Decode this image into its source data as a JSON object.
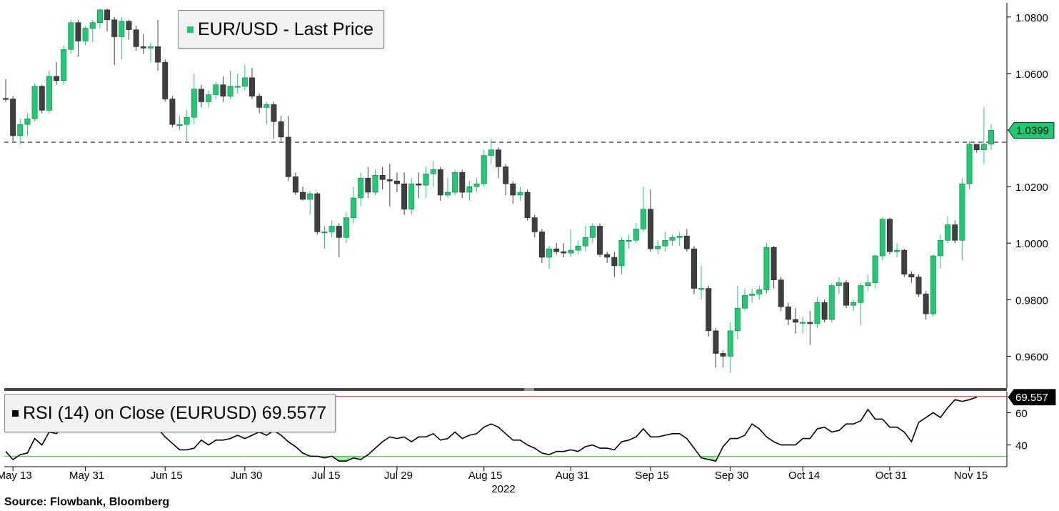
{
  "source": "Source:  Flowbank, Bloomberg",
  "colors": {
    "up": "#1ecb73",
    "down": "#3f3f3f",
    "rsi_line": "#000000",
    "upper_band": "#d42020",
    "lower_band": "#3cc43c",
    "lower_fill": "#a8e6a8",
    "upper_fill": "#d6d6d6"
  },
  "legends": {
    "price": "EUR/USD - Last Price",
    "rsi": "RSI (14)  on Close (EURUSD) 69.5577"
  },
  "last_price": {
    "value": 1.0399,
    "label": "1.0399"
  },
  "last_rsi": {
    "value": 69.557,
    "label": "69.557"
  },
  "chart_data": [
    {
      "type": "candlestick",
      "title": "EUR/USD - Last Price",
      "ylim": [
        0.95,
        1.085
      ],
      "yticks": [
        {
          "value": 0.96,
          "label": "0.9600"
        },
        {
          "value": 0.98,
          "label": "0.9800"
        },
        {
          "value": 1.0,
          "label": "1.0000"
        },
        {
          "value": 1.02,
          "label": "1.0200"
        },
        {
          "value": 1.04,
          "label": "1.0400"
        },
        {
          "value": 1.06,
          "label": "1.0600"
        },
        {
          "value": 1.08,
          "label": "1.0800"
        }
      ],
      "reference_line": 1.0357,
      "candles": [
        [
          1.0512,
          1.051,
          1.058,
          1.05
        ],
        [
          1.051,
          1.038,
          1.052,
          1.036
        ],
        [
          1.038,
          1.042,
          1.044,
          1.035
        ],
        [
          1.042,
          1.044,
          1.046,
          1.038
        ],
        [
          1.044,
          1.0555,
          1.0565,
          1.043
        ],
        [
          1.0555,
          1.047,
          1.056,
          1.046
        ],
        [
          1.047,
          1.059,
          1.061,
          1.046
        ],
        [
          1.059,
          1.0575,
          1.064,
          1.056
        ],
        [
          1.0575,
          1.0685,
          1.07,
          1.056
        ],
        [
          1.0685,
          1.078,
          1.079,
          1.067
        ],
        [
          1.078,
          1.0715,
          1.079,
          1.066
        ],
        [
          1.0715,
          1.076,
          1.077,
          1.07
        ],
        [
          1.076,
          1.078,
          1.079,
          1.071
        ],
        [
          1.078,
          1.0825,
          1.083,
          1.076
        ],
        [
          1.0825,
          1.079,
          1.083,
          1.075
        ],
        [
          1.079,
          1.073,
          1.08,
          1.063
        ],
        [
          1.073,
          1.0785,
          1.08,
          1.065
        ],
        [
          1.0785,
          1.0755,
          1.079,
          1.072
        ],
        [
          1.0755,
          1.0695,
          1.077,
          1.068
        ],
        [
          1.0695,
          1.069,
          1.074,
          1.067
        ],
        [
          1.069,
          1.0695,
          1.071,
          1.064
        ],
        [
          1.0695,
          1.064,
          1.079,
          1.061
        ],
        [
          1.064,
          1.051,
          1.065,
          1.05
        ],
        [
          1.051,
          1.042,
          1.052,
          1.041
        ],
        [
          1.042,
          1.042,
          1.045,
          1.04
        ],
        [
          1.042,
          1.0445,
          1.047,
          1.036
        ],
        [
          1.0445,
          1.0545,
          1.06,
          1.042
        ],
        [
          1.0545,
          1.05,
          1.056,
          1.048
        ],
        [
          1.05,
          1.0525,
          1.054,
          1.048
        ],
        [
          1.0525,
          1.056,
          1.057,
          1.051
        ],
        [
          1.056,
          1.052,
          1.059,
          1.05
        ],
        [
          1.052,
          1.0555,
          1.061,
          1.051
        ],
        [
          1.0555,
          1.0555,
          1.06,
          1.053
        ],
        [
          1.0555,
          1.0585,
          1.063,
          1.054
        ],
        [
          1.0585,
          1.052,
          1.062,
          1.051
        ],
        [
          1.052,
          1.048,
          1.053,
          1.046
        ],
        [
          1.048,
          1.049,
          1.05,
          1.042
        ],
        [
          1.049,
          1.043,
          1.05,
          1.037
        ],
        [
          1.043,
          1.0375,
          1.045,
          1.036
        ],
        [
          1.0375,
          1.0235,
          1.045,
          1.022
        ],
        [
          1.0235,
          1.018,
          1.025,
          1.017
        ],
        [
          1.018,
          1.0155,
          1.02,
          1.015
        ],
        [
          1.0155,
          1.0175,
          1.0185,
          1.01
        ],
        [
          1.0175,
          1.004,
          1.018,
          1.003
        ],
        [
          1.004,
          1.004,
          1.006,
          0.998
        ],
        [
          1.004,
          1.006,
          1.008,
          1.002
        ],
        [
          1.006,
          1.002,
          1.007,
          0.995
        ],
        [
          1.002,
          1.009,
          1.011,
          1.0
        ],
        [
          1.009,
          1.016,
          1.02,
          1.007
        ],
        [
          1.016,
          1.023,
          1.025,
          1.013
        ],
        [
          1.023,
          1.018,
          1.027,
          1.016
        ],
        [
          1.018,
          1.024,
          1.026,
          1.017
        ],
        [
          1.024,
          1.0225,
          1.027,
          1.019
        ],
        [
          1.0225,
          1.022,
          1.028,
          1.013
        ],
        [
          1.022,
          1.021,
          1.025,
          1.018
        ],
        [
          1.021,
          1.012,
          1.025,
          1.01
        ],
        [
          1.012,
          1.021,
          1.023,
          1.01
        ],
        [
          1.021,
          1.0205,
          1.025,
          1.016
        ],
        [
          1.0205,
          1.0245,
          1.027,
          1.016
        ],
        [
          1.0245,
          1.026,
          1.029,
          1.02
        ],
        [
          1.026,
          1.017,
          1.027,
          1.015
        ],
        [
          1.017,
          1.018,
          1.023,
          1.016
        ],
        [
          1.018,
          1.025,
          1.026,
          1.017
        ],
        [
          1.025,
          1.018,
          1.026,
          1.016
        ],
        [
          1.018,
          1.02,
          1.022,
          1.015
        ],
        [
          1.02,
          1.021,
          1.023,
          1.018
        ],
        [
          1.021,
          1.031,
          1.033,
          1.02
        ],
        [
          1.031,
          1.033,
          1.037,
          1.028
        ],
        [
          1.033,
          1.027,
          1.034,
          1.023
        ],
        [
          1.027,
          1.021,
          1.028,
          1.017
        ],
        [
          1.021,
          1.017,
          1.022,
          1.014
        ],
        [
          1.017,
          1.018,
          1.02,
          1.015
        ],
        [
          1.018,
          1.009,
          1.019,
          1.008
        ],
        [
          1.009,
          1.004,
          1.01,
          1.002
        ],
        [
          1.004,
          0.995,
          1.005,
          0.993
        ],
        [
          0.995,
          0.998,
          0.999,
          0.991
        ],
        [
          0.998,
          0.997,
          1.0,
          0.996
        ],
        [
          0.997,
          0.9965,
          1.0,
          0.995
        ],
        [
          0.9965,
          0.9975,
          1.005,
          0.995
        ],
        [
          0.9975,
          0.999,
          1.001,
          0.996
        ],
        [
          0.999,
          1.002,
          1.006,
          0.997
        ],
        [
          1.002,
          1.006,
          1.007,
          1.0
        ],
        [
          1.006,
          0.996,
          1.007,
          0.995
        ],
        [
          0.996,
          0.995,
          0.997,
          0.993
        ],
        [
          0.995,
          0.992,
          0.997,
          0.988
        ],
        [
          0.992,
          1.001,
          1.002,
          0.989
        ],
        [
          1.001,
          1.001,
          1.003,
          0.998
        ],
        [
          1.001,
          1.005,
          1.007,
          1.0
        ],
        [
          1.005,
          1.012,
          1.02,
          1.004
        ],
        [
          1.012,
          0.998,
          1.019,
          0.997
        ],
        [
          0.998,
          0.999,
          1.001,
          0.996
        ],
        [
          0.999,
          1.001,
          1.004,
          0.997
        ],
        [
          1.001,
          1.002,
          1.003,
          0.999
        ],
        [
          1.002,
          1.0025,
          1.004,
          0.999
        ],
        [
          1.0025,
          0.998,
          1.005,
          0.997
        ],
        [
          0.998,
          0.984,
          0.999,
          0.982
        ],
        [
          0.984,
          0.984,
          0.992,
          0.98
        ],
        [
          0.984,
          0.969,
          0.985,
          0.967
        ],
        [
          0.969,
          0.961,
          0.97,
          0.956
        ],
        [
          0.961,
          0.96,
          0.962,
          0.956
        ],
        [
          0.96,
          0.969,
          0.972,
          0.954
        ],
        [
          0.969,
          0.977,
          0.985,
          0.966
        ],
        [
          0.977,
          0.9815,
          0.984,
          0.976
        ],
        [
          0.9815,
          0.982,
          0.984,
          0.979
        ],
        [
          0.982,
          0.9835,
          0.985,
          0.98
        ],
        [
          0.9835,
          0.9985,
          1.0,
          0.982
        ],
        [
          0.9985,
          0.987,
          0.999,
          0.984
        ],
        [
          0.987,
          0.9775,
          0.988,
          0.976
        ],
        [
          0.9775,
          0.973,
          0.979,
          0.971
        ],
        [
          0.973,
          0.972,
          0.977,
          0.968
        ],
        [
          0.972,
          0.972,
          0.974,
          0.968
        ],
        [
          0.972,
          0.9715,
          0.976,
          0.964
        ],
        [
          0.9715,
          0.979,
          0.981,
          0.97
        ],
        [
          0.979,
          0.973,
          0.98,
          0.972
        ],
        [
          0.973,
          0.985,
          0.986,
          0.972
        ],
        [
          0.985,
          0.986,
          0.988,
          0.982
        ],
        [
          0.986,
          0.978,
          0.987,
          0.977
        ],
        [
          0.978,
          0.979,
          0.98,
          0.976
        ],
        [
          0.979,
          0.985,
          0.986,
          0.971
        ],
        [
          0.985,
          0.986,
          0.989,
          0.983
        ],
        [
          0.986,
          0.9955,
          0.996,
          0.984
        ],
        [
          0.9955,
          1.0085,
          1.009,
          0.994
        ],
        [
          1.0085,
          0.997,
          1.009,
          0.996
        ],
        [
          0.997,
          0.9975,
          1.0,
          0.995
        ],
        [
          0.9975,
          0.989,
          0.998,
          0.988
        ],
        [
          0.989,
          0.988,
          0.99,
          0.986
        ],
        [
          0.988,
          0.982,
          0.989,
          0.981
        ],
        [
          0.982,
          0.975,
          0.983,
          0.973
        ],
        [
          0.975,
          0.9955,
          0.996,
          0.974
        ],
        [
          0.9955,
          1.001,
          1.003,
          0.991
        ],
        [
          1.001,
          1.0065,
          1.0095,
          1.0
        ],
        [
          1.0065,
          1.001,
          1.008,
          1.0
        ],
        [
          1.001,
          1.021,
          1.023,
          0.994
        ],
        [
          1.021,
          1.035,
          1.036,
          1.019
        ],
        [
          1.035,
          1.033,
          1.035,
          1.032
        ],
        [
          1.033,
          1.035,
          1.048,
          1.028
        ],
        [
          1.035,
          1.0399,
          1.042,
          1.033
        ]
      ]
    },
    {
      "type": "line",
      "title": "RSI (14)  on Close (EURUSD) 69.5577",
      "ylim": [
        27,
        73
      ],
      "yticks": [
        {
          "value": 40,
          "label": "40"
        },
        {
          "value": 60,
          "label": "60"
        }
      ],
      "upper_band": 70,
      "lower_band": 33,
      "values": [
        36,
        31,
        34,
        35,
        44,
        40,
        48,
        47,
        52,
        58,
        55,
        56,
        58,
        60,
        58,
        55,
        57,
        54,
        53,
        52,
        53,
        50,
        45,
        41,
        37,
        37,
        38,
        43,
        40,
        43,
        43,
        44,
        46,
        44,
        46,
        48,
        46,
        49,
        46,
        42,
        39,
        35,
        33,
        33,
        32,
        33,
        30,
        30,
        32,
        31,
        34,
        38,
        42,
        45,
        44,
        45,
        42,
        45,
        45,
        47,
        43,
        44,
        48,
        44,
        46,
        47,
        51,
        53,
        51,
        47,
        43,
        43,
        40,
        38,
        35,
        34,
        36,
        36,
        37,
        36,
        39,
        40,
        38,
        38,
        37,
        42,
        43,
        45,
        50,
        45,
        45,
        46,
        47,
        47,
        44,
        38,
        32,
        31,
        30,
        39,
        44,
        44,
        46,
        53,
        50,
        45,
        42,
        40,
        40,
        40,
        44,
        44,
        50,
        51,
        48,
        49,
        53,
        53,
        55,
        62,
        56,
        56,
        51,
        51,
        48,
        42,
        54,
        57,
        60,
        57,
        63,
        68,
        67,
        68,
        69.557
      ],
      "xticks": [
        {
          "index": 1,
          "label": "May 13"
        },
        {
          "index": 11,
          "label": "May 31"
        },
        {
          "index": 22,
          "label": "Jun 15"
        },
        {
          "index": 33,
          "label": "Jun 30"
        },
        {
          "index": 44,
          "label": "Jul 15"
        },
        {
          "index": 54,
          "label": "Jul 29"
        },
        {
          "index": 66,
          "label": "Aug 15"
        },
        {
          "index": 78,
          "label": "Aug 31"
        },
        {
          "index": 89,
          "label": "Sep 15"
        },
        {
          "index": 100,
          "label": "Sep 30"
        },
        {
          "index": 110,
          "label": "Oct 14"
        },
        {
          "index": 122,
          "label": "Oct 31"
        },
        {
          "index": 133,
          "label": "Nov 15"
        }
      ],
      "xlabel_year": "2022"
    }
  ]
}
